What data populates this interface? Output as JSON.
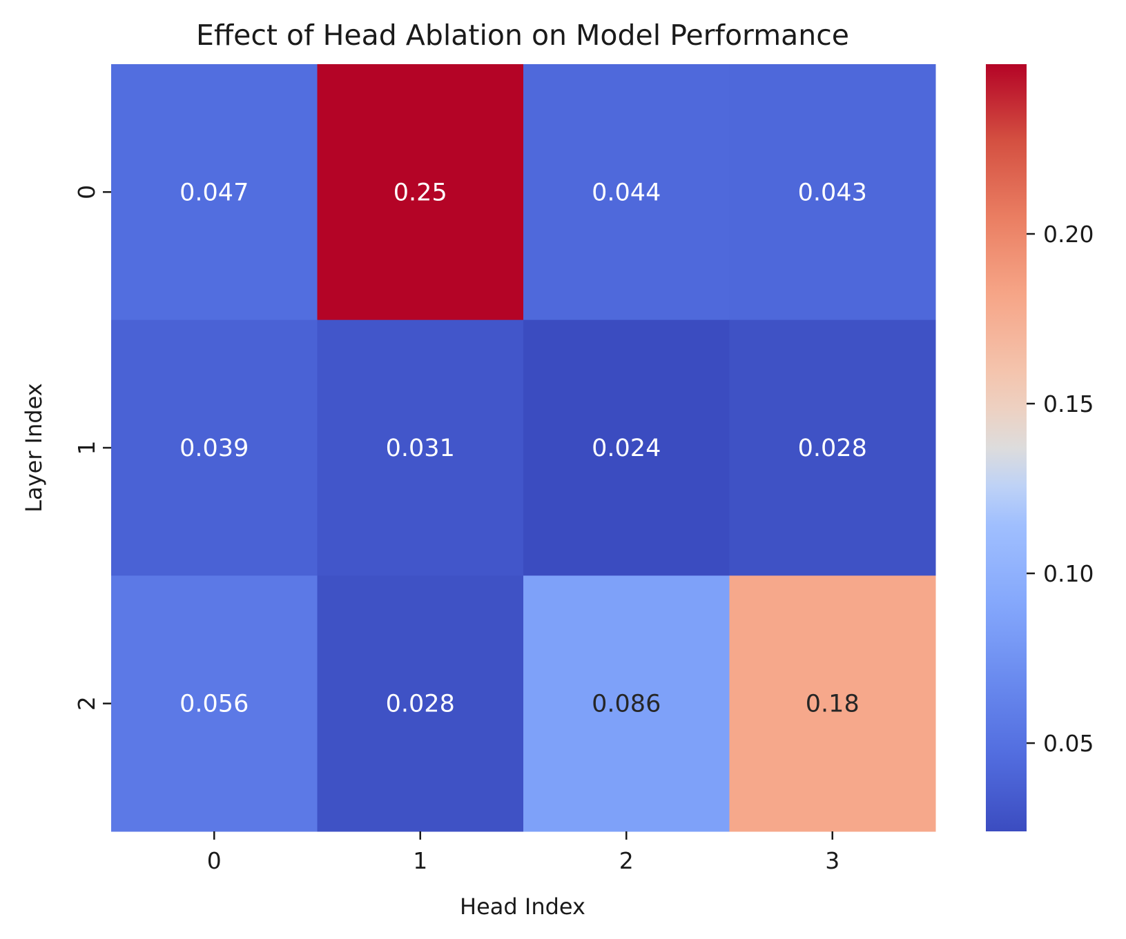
{
  "chart_data": {
    "type": "heatmap",
    "title": "Effect of Head Ablation on Model Performance",
    "xlabel": "Head Index",
    "ylabel": "Layer Index",
    "x_categories": [
      "0",
      "1",
      "2",
      "3"
    ],
    "y_categories": [
      "0",
      "1",
      "2"
    ],
    "values": [
      [
        0.047,
        0.25,
        0.044,
        0.043
      ],
      [
        0.039,
        0.031,
        0.024,
        0.028
      ],
      [
        0.056,
        0.028,
        0.086,
        0.18
      ]
    ],
    "annotations": [
      [
        "0.047",
        "0.25",
        "0.044",
        "0.043"
      ],
      [
        "0.039",
        "0.031",
        "0.024",
        "0.028"
      ],
      [
        "0.056",
        "0.028",
        "0.086",
        "0.18"
      ]
    ],
    "colormap": "coolwarm",
    "colorbar": {
      "range": [
        0.024,
        0.25
      ],
      "ticks": [
        0.05,
        0.1,
        0.15,
        0.2
      ],
      "tick_labels": [
        "0.05",
        "0.10",
        "0.15",
        "0.20"
      ]
    },
    "colors": {
      "low": "#3b4cc0",
      "mid": "#dddcdc",
      "high": "#b40426"
    }
  }
}
